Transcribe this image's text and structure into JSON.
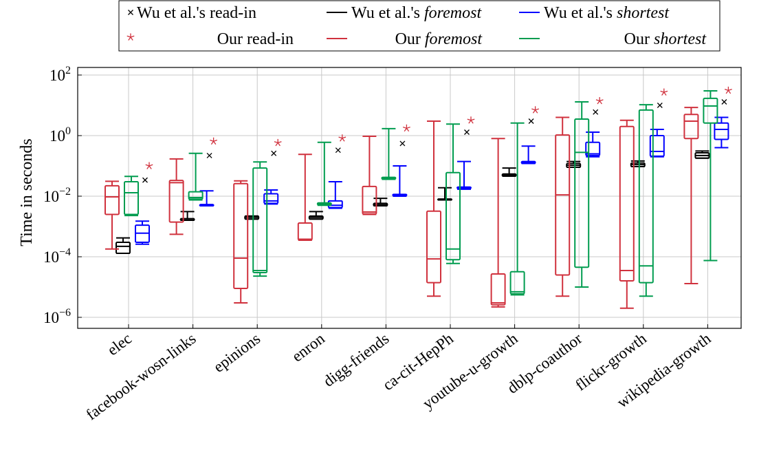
{
  "chart_data": {
    "type": "boxplot",
    "ylabel": "Time in seconds",
    "y_scale": "log",
    "ylim": [
      1e-07,
      200.0
    ],
    "y_ticks": [
      {
        "value": 1e-06,
        "label": "10",
        "exp": "−6"
      },
      {
        "value": 0.0001,
        "label": "10",
        "exp": "−4"
      },
      {
        "value": 0.01,
        "label": "10",
        "exp": "−2"
      },
      {
        "value": 1,
        "label": "10",
        "exp": "0"
      },
      {
        "value": 100,
        "label": "10",
        "exp": "2"
      }
    ],
    "grid": true,
    "legend_position": "top",
    "categories": [
      "elec",
      "facebook-wosn-links",
      "epinions",
      "enron",
      "digg-friends",
      "ca-cit-HepPh",
      "youtube-u-growth",
      "dblp-coauthor",
      "flickr-growth",
      "wikipedia-growth"
    ],
    "series": [
      {
        "legend_prefix": "Wu et al.'s ",
        "legend_em": "foremost",
        "kind": "box",
        "color": "#000000",
        "boxes": [
          {
            "min": 0.00013,
            "q1": 0.00013,
            "median": 0.00022,
            "q3": 0.0003,
            "max": 0.00042
          },
          {
            "min": 0.0016,
            "q1": 0.0016,
            "median": 0.0018,
            "q3": 0.0018,
            "max": 0.0031
          },
          {
            "min": 0.00175,
            "q1": 0.00175,
            "median": 0.002,
            "q3": 0.0022,
            "max": 0.0022
          },
          {
            "min": 0.00175,
            "q1": 0.00175,
            "median": 0.002,
            "q3": 0.0022,
            "max": 0.0031
          },
          {
            "min": 0.0048,
            "q1": 0.0048,
            "median": 0.0052,
            "q3": 0.0058,
            "max": 0.0085
          },
          {
            "min": 0.0075,
            "q1": 0.0075,
            "median": 0.008,
            "q3": 0.008,
            "max": 0.019
          },
          {
            "min": 0.046,
            "q1": 0.046,
            "median": 0.05,
            "q3": 0.054,
            "max": 0.085
          },
          {
            "min": 0.09,
            "q1": 0.09,
            "median": 0.105,
            "q3": 0.12,
            "max": 0.14
          },
          {
            "min": 0.095,
            "q1": 0.095,
            "median": 0.11,
            "q3": 0.125,
            "max": 0.145
          },
          {
            "min": 0.18,
            "q1": 0.18,
            "median": 0.22,
            "q3": 0.27,
            "max": 0.31
          }
        ]
      },
      {
        "legend_prefix": "Wu et al.'s ",
        "legend_em": "shortest",
        "kind": "box",
        "color": "#0000ff",
        "boxes": [
          {
            "min": 0.00026,
            "q1": 0.0003,
            "median": 0.0006,
            "q3": 0.0011,
            "max": 0.0015
          },
          {
            "min": 0.0048,
            "q1": 0.0048,
            "median": 0.005,
            "q3": 0.0053,
            "max": 0.015
          },
          {
            "min": 0.0055,
            "q1": 0.0058,
            "median": 0.007,
            "q3": 0.012,
            "max": 0.016
          },
          {
            "min": 0.004,
            "q1": 0.0042,
            "median": 0.005,
            "q3": 0.007,
            "max": 0.03
          },
          {
            "min": 0.01,
            "q1": 0.0105,
            "median": 0.011,
            "q3": 0.0115,
            "max": 0.1
          },
          {
            "min": 0.017,
            "q1": 0.018,
            "median": 0.019,
            "q3": 0.02,
            "max": 0.14
          },
          {
            "min": 0.12,
            "q1": 0.12,
            "median": 0.13,
            "q3": 0.14,
            "max": 0.45
          },
          {
            "min": 0.2,
            "q1": 0.22,
            "median": 0.25,
            "q3": 0.6,
            "max": 1.3
          },
          {
            "min": 0.2,
            "q1": 0.21,
            "median": 0.3,
            "q3": 1.0,
            "max": 1.6
          },
          {
            "min": 0.4,
            "q1": 0.75,
            "median": 1.6,
            "q3": 2.6,
            "max": 4.0
          }
        ]
      },
      {
        "legend_prefix": "Our ",
        "legend_em": "foremost",
        "kind": "box",
        "color": "#d0313d",
        "boxes": [
          {
            "min": 0.00018,
            "q1": 0.0025,
            "median": 0.0095,
            "q3": 0.022,
            "max": 0.031
          },
          {
            "min": 0.00055,
            "q1": 0.0014,
            "median": 0.028,
            "q3": 0.033,
            "max": 0.17
          },
          {
            "min": 3e-06,
            "q1": 9e-06,
            "median": 9e-05,
            "q3": 0.026,
            "max": 0.032
          },
          {
            "min": 0.00035,
            "q1": 0.00036,
            "median": 0.00038,
            "q3": 0.0013,
            "max": 0.24
          },
          {
            "min": 0.0025,
            "q1": 0.0026,
            "median": 0.003,
            "q3": 0.021,
            "max": 0.95
          },
          {
            "min": 5e-06,
            "q1": 1.4e-05,
            "median": 8.5e-05,
            "q3": 0.0032,
            "max": 3.0
          },
          {
            "min": 2.2e-06,
            "q1": 2.6e-06,
            "median": 3e-06,
            "q3": 2.7e-05,
            "max": 0.8
          },
          {
            "min": 5e-06,
            "q1": 2.5e-05,
            "median": 0.011,
            "q3": 1.05,
            "max": 4.0
          },
          {
            "min": 2e-06,
            "q1": 1.6e-05,
            "median": 3.5e-05,
            "q3": 2.0,
            "max": 3.2
          },
          {
            "min": 1.3e-05,
            "q1": 0.8,
            "median": 3.0,
            "q3": 5.0,
            "max": 8.5
          }
        ]
      },
      {
        "legend_prefix": "Our ",
        "legend_em": "shortest",
        "kind": "box",
        "color": "#009c4f",
        "boxes": [
          {
            "min": 0.0023,
            "q1": 0.0025,
            "median": 0.013,
            "q3": 0.03,
            "max": 0.045
          },
          {
            "min": 0.0075,
            "q1": 0.008,
            "median": 0.009,
            "q3": 0.014,
            "max": 0.26
          },
          {
            "min": 2.3e-05,
            "q1": 3e-05,
            "median": 3.5e-05,
            "q3": 0.085,
            "max": 0.135
          },
          {
            "min": 0.005,
            "q1": 0.0052,
            "median": 0.0055,
            "q3": 0.006,
            "max": 0.6
          },
          {
            "min": 0.036,
            "q1": 0.037,
            "median": 0.039,
            "q3": 0.042,
            "max": 1.7
          },
          {
            "min": 6e-05,
            "q1": 8e-05,
            "median": 0.00018,
            "q3": 0.06,
            "max": 2.4
          },
          {
            "min": 5.5e-06,
            "q1": 6e-06,
            "median": 7e-06,
            "q3": 3.2e-05,
            "max": 2.6
          },
          {
            "min": 1e-05,
            "q1": 4.5e-05,
            "median": 0.28,
            "q3": 3.5,
            "max": 13
          },
          {
            "min": 5e-06,
            "q1": 1.4e-05,
            "median": 5e-05,
            "q3": 7.0,
            "max": 10.5
          },
          {
            "min": 7.5e-05,
            "q1": 2.6,
            "median": 9.5,
            "q3": 17,
            "max": 30
          }
        ]
      },
      {
        "legend_prefix": "Wu et al.'s read-in",
        "legend_em": "",
        "kind": "marker",
        "marker": "x",
        "color": "#000000",
        "values": [
          0.034,
          0.22,
          0.26,
          0.33,
          0.55,
          1.3,
          3.0,
          6.0,
          10.0,
          13.0
        ]
      },
      {
        "legend_prefix": "Our read-in",
        "legend_em": "",
        "kind": "marker",
        "marker": "star",
        "color": "#d0313d",
        "values": [
          0.1,
          0.65,
          0.58,
          0.82,
          1.75,
          3.2,
          7.0,
          14.0,
          27.0,
          31.0
        ]
      }
    ],
    "legend": [
      [
        {
          "series": 4,
          "prefix": "Wu et al.'s read-in",
          "em": ""
        },
        {
          "series": 0,
          "prefix": "Wu et al.'s ",
          "em": "foremost"
        },
        {
          "series": 1,
          "prefix": "Wu et al.'s ",
          "em": "shortest"
        }
      ],
      [
        {
          "series": 5,
          "prefix": "Our read-in",
          "em": ""
        },
        {
          "series": 2,
          "prefix": "Our ",
          "em": "foremost"
        },
        {
          "series": 3,
          "prefix": "Our ",
          "em": "shortest"
        }
      ]
    ]
  }
}
